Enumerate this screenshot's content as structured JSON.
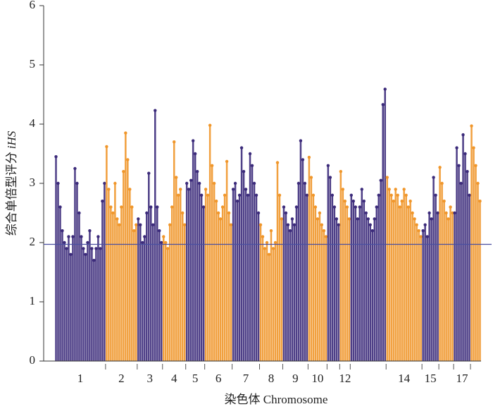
{
  "chart_data": {
    "type": "manhattan",
    "ylabel": [
      "综合单倍型评分",
      "iHS"
    ],
    "xlabel": "染色体 Chromosome",
    "ylim": [
      0,
      6
    ],
    "yticks": [
      0,
      1,
      2,
      3,
      4,
      5,
      6
    ],
    "threshold": 1.97,
    "threshold_color": "#4a4fa0",
    "colors": [
      "#3b2a7a",
      "#f0962a"
    ],
    "categories": [
      "1",
      "2",
      "3",
      "4",
      "5",
      "6",
      "7",
      "8",
      "9",
      "10",
      null,
      "12",
      null,
      "14",
      "15",
      null,
      "17",
      null
    ],
    "values": [
      [
        3.45,
        3.0,
        2.6,
        2.2,
        2.0,
        1.9,
        2.1,
        1.8,
        2.1,
        3.25,
        3.0,
        2.5,
        2.1,
        1.9,
        1.8,
        2.0,
        2.2,
        1.9,
        1.7,
        1.9,
        2.1,
        1.9,
        2.7,
        3.0
      ],
      [
        3.62,
        2.9,
        2.6,
        2.5,
        3.0,
        2.4,
        2.3,
        2.6,
        3.2,
        3.85,
        3.4,
        2.9,
        2.6,
        2.2,
        2.3
      ],
      [
        2.4,
        2.3,
        2.0,
        2.1,
        2.5,
        3.17,
        2.6,
        2.3,
        4.23,
        2.6,
        2.2,
        2.0
      ],
      [
        2.1,
        2.0,
        1.9,
        2.3,
        2.6,
        3.7,
        3.1,
        2.8,
        2.9,
        2.5,
        2.3
      ],
      [
        3.0,
        2.9,
        3.05,
        3.72,
        3.5,
        3.2,
        3.0,
        2.8,
        2.6
      ],
      [
        2.9,
        2.8,
        3.98,
        3.3,
        3.0,
        2.7,
        2.5,
        2.4,
        2.6,
        2.8,
        3.37,
        2.5,
        2.3
      ],
      [
        2.9,
        3.0,
        2.7,
        2.8,
        3.6,
        3.2,
        2.9,
        2.8,
        3.5,
        3.3,
        3.0,
        2.8,
        2.5
      ],
      [
        2.3,
        2.1,
        1.9,
        2.0,
        1.8,
        2.2,
        1.9,
        2.0,
        3.35,
        2.8,
        2.4
      ],
      [
        2.6,
        2.5,
        2.3,
        2.2,
        2.4,
        2.3,
        2.6,
        3.0,
        3.72,
        3.4,
        3.0,
        2.8
      ],
      [
        3.44,
        3.1,
        2.8,
        2.6,
        2.4,
        2.5,
        2.3,
        2.2,
        2.1
      ],
      [
        3.3,
        3.1,
        2.8,
        2.6,
        2.4,
        2.3
      ],
      [
        3.2,
        2.9,
        2.7,
        2.6,
        2.4
      ],
      [
        2.8,
        2.7,
        2.6,
        2.4,
        2.6,
        2.9,
        2.7,
        2.5,
        2.4,
        2.3,
        2.2,
        2.4,
        2.6,
        2.8,
        3.05,
        4.33,
        4.59
      ],
      [
        3.1,
        2.9,
        2.8,
        2.7,
        2.9,
        2.8,
        2.6,
        2.7,
        2.9,
        2.8,
        2.6,
        2.7,
        2.5,
        2.4,
        2.3,
        2.2,
        2.1
      ],
      [
        2.2,
        2.3,
        2.1,
        2.5,
        2.4,
        3.1,
        2.8,
        2.5
      ],
      [
        3.27,
        3.0,
        2.7,
        2.5,
        2.4,
        2.6,
        2.5
      ],
      [
        2.5,
        3.6,
        3.3,
        3.0,
        3.82,
        3.5,
        3.2,
        2.8
      ],
      [
        3.97,
        3.6,
        3.3,
        3.0,
        2.7
      ]
    ]
  }
}
